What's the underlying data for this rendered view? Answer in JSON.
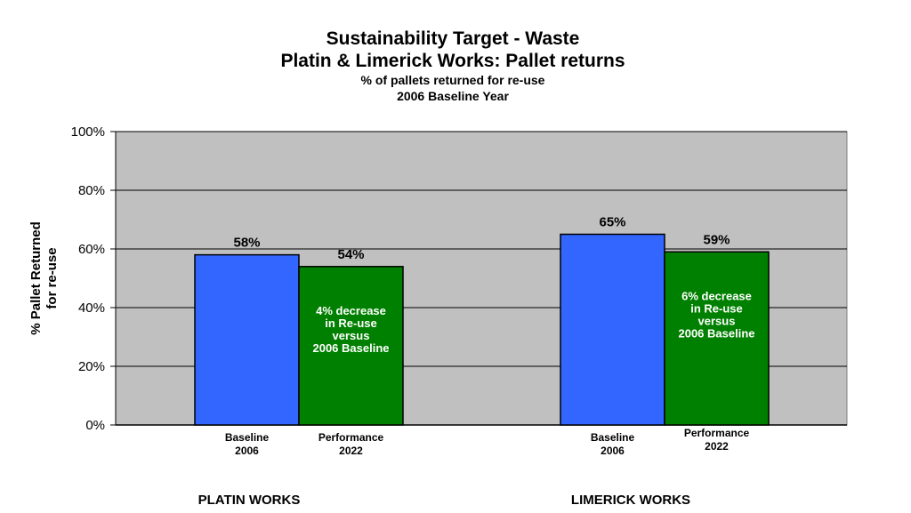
{
  "chart_data": {
    "type": "bar",
    "title": "Sustainability Target - Waste",
    "title_line2": "Platin & Limerick Works: Pallet returns",
    "subtitle": "% of pallets returned for re-use",
    "subtitle_line2": "2006 Baseline Year",
    "ylabel": [
      "% Pallet Returned",
      "for re-use"
    ],
    "ylim": [
      0,
      100
    ],
    "yticks": [
      "0%",
      "20%",
      "40%",
      "60%",
      "80%",
      "100%"
    ],
    "grid": true,
    "plot_background": "#c0c0c0",
    "groups": [
      {
        "name": "PLATIN WORKS",
        "bars": [
          {
            "label": [
              "Baseline",
              "2006"
            ],
            "value": 58,
            "data_label": "58%",
            "color": "#3366ff"
          },
          {
            "label": [
              "Performance",
              "2022"
            ],
            "value": 54,
            "data_label": "54%",
            "color": "#008000",
            "annotation": [
              "4% decrease",
              "in Re-use",
              "versus",
              "2006 Baseline"
            ]
          }
        ]
      },
      {
        "name": "LIMERICK WORKS",
        "bars": [
          {
            "label": [
              "Baseline",
              "2006"
            ],
            "value": 65,
            "data_label": "65%",
            "color": "#3366ff"
          },
          {
            "label": [
              "Performance",
              "2022"
            ],
            "value": 59,
            "data_label": "59%",
            "color": "#008000",
            "annotation": [
              "6% decrease",
              "in Re-use",
              "versus",
              "2006 Baseline"
            ]
          }
        ]
      }
    ]
  }
}
